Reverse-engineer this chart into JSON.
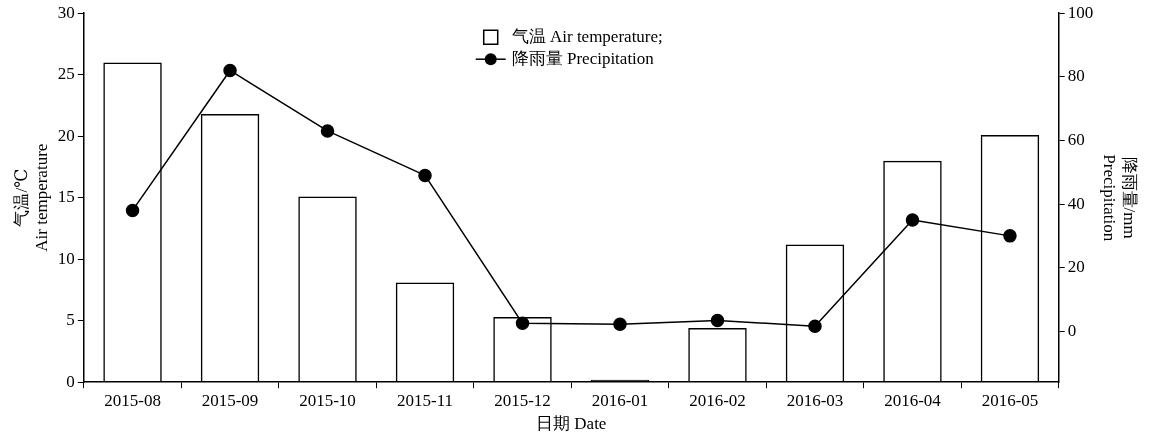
{
  "chart_data": {
    "type": "bar",
    "xlabel": "日期 Date",
    "ylabel": "气温/℃\nAir temperature",
    "y2label": "降雨量/mm\nPrecipitation",
    "categories": [
      "2015-08",
      "2015-09",
      "2015-10",
      "2015-11",
      "2015-12",
      "2016-01",
      "2016-02",
      "2016-03",
      "2016-04",
      "2016-05"
    ],
    "series": [
      {
        "name": "气温 Air temperature;",
        "color": "#000000",
        "values": [
          26,
          21.8,
          15.1,
          8.1,
          5.3,
          0.2,
          4.4,
          11.2,
          18,
          20.1
        ]
      },
      {
        "name": "降雨量 Precipitation",
        "type": "line",
        "axis": "y2",
        "color": "#000000",
        "values": [
          38,
          82,
          63,
          49,
          2.5,
          2.2,
          3.4,
          1.6,
          35,
          30
        ]
      }
    ],
    "ylim": [
      0,
      30
    ],
    "yticks": [
      0,
      5,
      10,
      15,
      20,
      25,
      30
    ],
    "y2lim": [
      -16,
      100
    ],
    "y2ticks": [
      0,
      20,
      40,
      60,
      80,
      100
    ],
    "grid": false,
    "legend": "top",
    "marker": "circle",
    "line_style": "solid"
  }
}
